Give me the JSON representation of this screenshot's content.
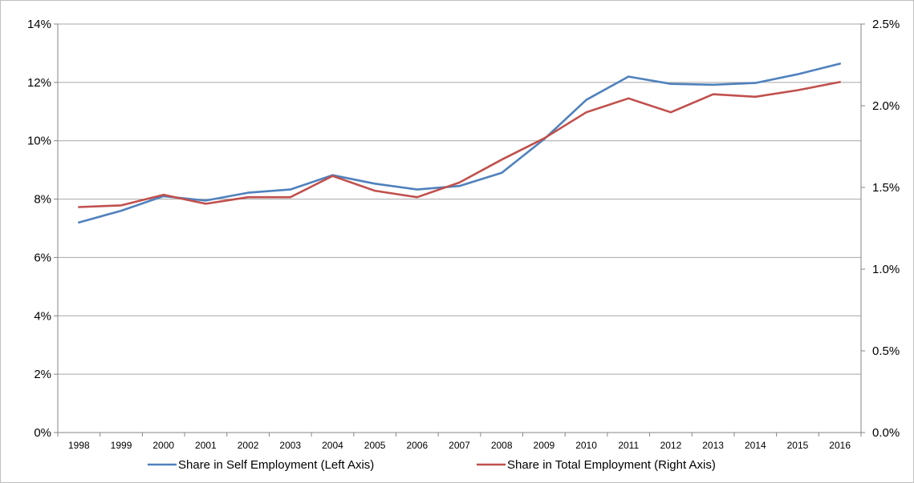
{
  "chart_data": {
    "type": "line",
    "categories": [
      "1998",
      "1999",
      "2000",
      "2001",
      "2002",
      "2003",
      "2004",
      "2005",
      "2006",
      "2007",
      "2008",
      "2009",
      "2010",
      "2011",
      "2012",
      "2013",
      "2014",
      "2015",
      "2016"
    ],
    "series": [
      {
        "name": "Share in Self Employment (Left Axis)",
        "axis": "left",
        "color": "#4F81BD",
        "values": [
          7.2,
          7.6,
          8.1,
          7.95,
          8.22,
          8.33,
          8.82,
          8.53,
          8.33,
          8.45,
          8.9,
          10.05,
          11.4,
          12.2,
          11.95,
          11.92,
          11.98,
          12.28,
          12.64
        ]
      },
      {
        "name": "Share in Total Employment (Right Axis)",
        "axis": "right",
        "color": "#C0504D",
        "values": [
          1.38,
          1.39,
          1.455,
          1.4,
          1.44,
          1.44,
          1.57,
          1.48,
          1.44,
          1.53,
          1.67,
          1.8,
          1.96,
          2.045,
          1.96,
          2.07,
          2.055,
          2.095,
          2.145
        ]
      }
    ],
    "left_axis": {
      "min": 0,
      "max": 14,
      "ticks": [
        "0%",
        "2%",
        "4%",
        "6%",
        "8%",
        "10%",
        "12%",
        "14%"
      ]
    },
    "right_axis": {
      "min": 0,
      "max": 2.5,
      "ticks": [
        "0.0%",
        "0.5%",
        "1.0%",
        "1.5%",
        "2.0%",
        "2.5%"
      ]
    },
    "grid": true,
    "legend_position": "bottom"
  }
}
